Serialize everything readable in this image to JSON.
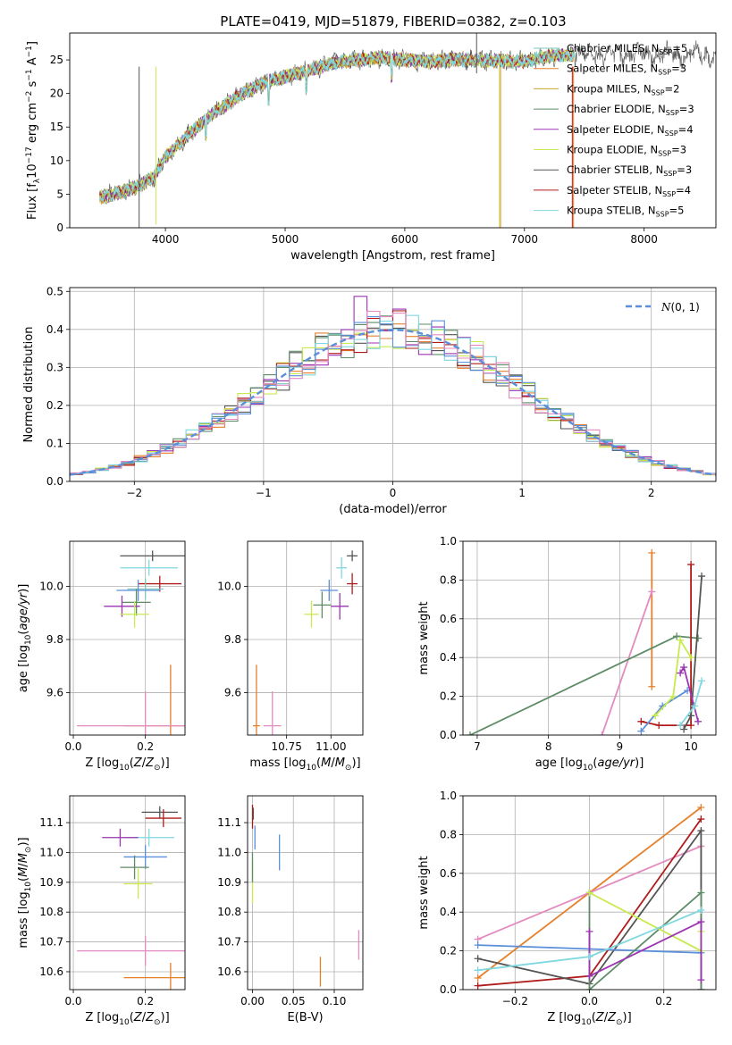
{
  "title": "PLATE=0419, MJD=51879, FIBERID=0382, z=0.103",
  "colors": {
    "chabrier_miles": "#7fc6c0",
    "salpeter_miles": "#e5802c",
    "kroupa_miles": "#c8a632",
    "chabrier_elodie": "#5e8c66",
    "salpeter_elodie": "#9b35b2",
    "kroupa_elodie": "#c8ea4e",
    "chabrier_stelib": "#555555",
    "salpeter_stelib": "#b01c1c",
    "kroupa_stelib": "#7fd8df",
    "blue": "#5b8fd9",
    "pink": "#e38bc0",
    "grid": "#b0b0b0"
  },
  "chart_data": [
    {
      "type": "line",
      "panel": "spectrum",
      "xlabel": "wavelength [Angstrom, rest frame]",
      "ylabel": "Flux [f_λ10^-17 erg cm^-2 s^-1 A^-1]",
      "xlim": [
        3200,
        8600
      ],
      "ylim": [
        0,
        29
      ],
      "xticks": [
        "4000",
        "5000",
        "6000",
        "7000",
        "8000"
      ],
      "yticks": [
        "0",
        "5",
        "10",
        "15",
        "20",
        "25"
      ],
      "grid": false,
      "legend_placement": "top-right",
      "legend": [
        {
          "name": "Chabrier MILES, N",
          "sub": "SSP",
          "post": "=5"
        },
        {
          "name": "Salpeter MILES, N",
          "sub": "SSP",
          "post": "=3"
        },
        {
          "name": "Kroupa MILES, N",
          "sub": "SSP",
          "post": "=2"
        },
        {
          "name": "Chabrier ELODIE, N",
          "sub": "SSP",
          "post": "=3"
        },
        {
          "name": "Salpeter ELODIE, N",
          "sub": "SSP",
          "post": "=4"
        },
        {
          "name": "Kroupa ELODIE, N",
          "sub": "SSP",
          "post": "=3"
        },
        {
          "name": "Chabrier STELIB, N",
          "sub": "SSP",
          "post": "=3"
        },
        {
          "name": "Salpeter STELIB, N",
          "sub": "SSP",
          "post": "=4"
        },
        {
          "name": "Kroupa STELIB, N",
          "sub": "SSP",
          "post": "=5"
        }
      ],
      "continuum": {
        "x": [
          3450,
          3600,
          3750,
          3900,
          4000,
          4200,
          4400,
          4600,
          4800,
          5000,
          5200,
          5400,
          5600,
          5800,
          6000,
          6200,
          6400,
          6600,
          6800,
          7000,
          7200,
          7420
        ],
        "y": [
          4.5,
          5.2,
          6.0,
          7.5,
          10.5,
          14.0,
          17.0,
          19.5,
          21.5,
          22.5,
          23.5,
          24.5,
          25.0,
          25.3,
          25.0,
          24.7,
          25.0,
          25.0,
          24.8,
          24.8,
          25.5,
          25.8
        ]
      },
      "spikes": [
        {
          "x": 3780,
          "y": 0.0,
          "series": "Chabrier STELIB"
        },
        {
          "x": 3920,
          "y": 0.5,
          "series": "Kroupa ELODIE"
        },
        {
          "x": 6600,
          "y": 29.0,
          "series": "Chabrier STELIB"
        },
        {
          "x": 6790,
          "y": 0.0,
          "series": "Kroupa ELODIE"
        },
        {
          "x": 6800,
          "y": 0.0,
          "series": "Salpeter MILES"
        },
        {
          "x": 7400,
          "y": 0.0,
          "series": "Salpeter STELIB"
        },
        {
          "x": 7410,
          "y": 0.0,
          "series": "Salpeter MILES"
        }
      ]
    },
    {
      "type": "bar",
      "panel": "residuals",
      "xlabel": "(data-model)/error",
      "ylabel": "Normed distribution",
      "xlim": [
        -2.5,
        2.5
      ],
      "ylim": [
        0,
        0.51
      ],
      "xticks": [
        "−2",
        "−1",
        "0",
        "1",
        "2"
      ],
      "yticks": [
        "0.0",
        "0.1",
        "0.2",
        "0.3",
        "0.4",
        "0.5"
      ],
      "grid": true,
      "legend_placement": "top-right",
      "legend": [
        {
          "name": "N(0,1)"
        }
      ],
      "bin_width": 0.1,
      "series_count": 9,
      "reference": "standard normal"
    },
    {
      "type": "scatter",
      "panel": "age-vs-Z",
      "xlabel": "Z [log10(Z/Z⊙)]",
      "ylabel": "age  [log10(age/yr)]",
      "xlim": [
        -0.01,
        0.31
      ],
      "ylim": [
        9.44,
        10.17
      ],
      "xticks": [
        "0.0",
        "0.2"
      ],
      "yticks": [
        "9.6",
        "9.8",
        "10.0"
      ],
      "grid": true,
      "points": [
        {
          "series": "Chabrier STELIB",
          "x": 0.22,
          "y": 10.115,
          "xerr": 0.09,
          "yerr": 0.02
        },
        {
          "series": "Kroupa STELIB",
          "x": 0.21,
          "y": 10.07,
          "xerr": 0.08,
          "yerr": 0.03
        },
        {
          "series": "Salpeter STELIB",
          "x": 0.24,
          "y": 10.01,
          "xerr": 0.06,
          "yerr": 0.03
        },
        {
          "series": "Chabrier MILES",
          "x": 0.2,
          "y": 9.99,
          "xerr": 0.05,
          "yerr": 0.04
        },
        {
          "series": "blue",
          "x": 0.18,
          "y": 9.985,
          "xerr": 0.06,
          "yerr": 0.04
        },
        {
          "series": "Chabrier ELODIE",
          "x": 0.175,
          "y": 9.94,
          "xerr": 0.04,
          "yerr": 0.05
        },
        {
          "series": "Salpeter ELODIE",
          "x": 0.135,
          "y": 9.925,
          "xerr": 0.05,
          "yerr": 0.04
        },
        {
          "series": "Kroupa ELODIE",
          "x": 0.17,
          "y": 9.895,
          "xerr": 0.04,
          "yerr": 0.05
        },
        {
          "series": "Salpeter MILES",
          "x": 0.27,
          "y": 9.475,
          "xerr": 0.13,
          "yerr": 0.23
        },
        {
          "series": "pink",
          "x": 0.2,
          "y": 9.475,
          "xerr": 0.19,
          "yerr": 0.13
        }
      ]
    },
    {
      "type": "scatter",
      "panel": "age-vs-mass",
      "xlabel": "mass [log10(M/M⊙)]",
      "ylabel": "",
      "xlim": [
        10.53,
        11.18
      ],
      "ylim": [
        9.44,
        10.17
      ],
      "xticks": [
        "10.75",
        "11.00"
      ],
      "yticks": [
        "9.6",
        "9.8",
        "10.0"
      ],
      "grid": true,
      "points": [
        {
          "series": "Chabrier STELIB",
          "x": 11.12,
          "y": 10.115,
          "xerr": 0.03,
          "yerr": 0.02
        },
        {
          "series": "Kroupa STELIB",
          "x": 11.06,
          "y": 10.07,
          "xerr": 0.03,
          "yerr": 0.04
        },
        {
          "series": "Salpeter STELIB",
          "x": 11.12,
          "y": 10.01,
          "xerr": 0.03,
          "yerr": 0.04
        },
        {
          "series": "blue",
          "x": 10.99,
          "y": 9.985,
          "xerr": 0.05,
          "yerr": 0.04
        },
        {
          "series": "Chabrier ELODIE",
          "x": 10.95,
          "y": 9.93,
          "xerr": 0.05,
          "yerr": 0.05
        },
        {
          "series": "Salpeter ELODIE",
          "x": 11.05,
          "y": 9.925,
          "xerr": 0.05,
          "yerr": 0.05
        },
        {
          "series": "Kroupa ELODIE",
          "x": 10.89,
          "y": 9.895,
          "xerr": 0.04,
          "yerr": 0.05
        },
        {
          "series": "pink",
          "x": 10.67,
          "y": 9.475,
          "xerr": 0.05,
          "yerr": 0.13
        },
        {
          "series": "Salpeter MILES",
          "x": 10.58,
          "y": 9.475,
          "xerr": 0.02,
          "yerr": 0.23
        }
      ]
    },
    {
      "type": "line",
      "panel": "mass-weight-vs-age",
      "xlabel": "age  [log10(age/yr)]",
      "ylabel": "mass weight",
      "xlim": [
        6.8,
        10.35
      ],
      "ylim": [
        0,
        1
      ],
      "xticks": [
        "7",
        "8",
        "9",
        "10"
      ],
      "yticks": [
        "0.0",
        "0.2",
        "0.4",
        "0.6",
        "0.8",
        "1.0"
      ],
      "grid": true,
      "series": [
        {
          "name": "Salpeter MILES",
          "x": [
            9.45,
            9.45
          ],
          "y": [
            0.25,
            0.94
          ]
        },
        {
          "name": "pink",
          "x": [
            8.75,
            9.45
          ],
          "y": [
            0.0,
            0.74
          ]
        },
        {
          "name": "Chabrier ELODIE",
          "x": [
            6.9,
            9.8,
            10.1
          ],
          "y": [
            0.0,
            0.51,
            0.5
          ]
        },
        {
          "name": "Salpeter STELIB",
          "x": [
            9.3,
            9.55,
            10.0,
            10.0
          ],
          "y": [
            0.07,
            0.05,
            0.05,
            0.88
          ]
        },
        {
          "name": "Chabrier STELIB",
          "x": [
            9.9,
            10.0,
            10.15
          ],
          "y": [
            0.03,
            0.1,
            0.82
          ]
        },
        {
          "name": "blue",
          "x": [
            9.3,
            9.6,
            9.95
          ],
          "y": [
            0.02,
            0.15,
            0.23
          ]
        },
        {
          "name": "Kroupa ELODIE",
          "x": [
            9.5,
            9.75,
            9.85,
            10.0
          ],
          "y": [
            0.1,
            0.2,
            0.49,
            0.4
          ]
        },
        {
          "name": "Salpeter ELODIE",
          "x": [
            9.85,
            9.9,
            10.1
          ],
          "y": [
            0.32,
            0.35,
            0.07
          ]
        },
        {
          "name": "Kroupa STELIB",
          "x": [
            9.85,
            10.05,
            10.15
          ],
          "y": [
            0.05,
            0.15,
            0.28
          ]
        }
      ]
    },
    {
      "type": "scatter",
      "panel": "mass-vs-Z",
      "xlabel": "Z [log10(Z/Z⊙)]",
      "ylabel": "mass [log10(M/M⊙)]",
      "xlim": [
        -0.01,
        0.31
      ],
      "ylim": [
        10.54,
        11.19
      ],
      "xticks": [
        "0.0",
        "0.2"
      ],
      "yticks": [
        "10.6",
        "10.7",
        "10.8",
        "10.9",
        "11.0",
        "11.1"
      ],
      "grid": true,
      "points": [
        {
          "series": "Chabrier STELIB",
          "x": 0.24,
          "y": 11.135,
          "xerr": 0.05,
          "yerr": 0.02
        },
        {
          "series": "Salpeter STELIB",
          "x": 0.25,
          "y": 11.115,
          "xerr": 0.05,
          "yerr": 0.03
        },
        {
          "series": "Kroupa STELIB",
          "x": 0.21,
          "y": 11.05,
          "xerr": 0.07,
          "yerr": 0.03
        },
        {
          "series": "Salpeter ELODIE",
          "x": 0.13,
          "y": 11.05,
          "xerr": 0.05,
          "yerr": 0.03
        },
        {
          "series": "blue",
          "x": 0.2,
          "y": 10.985,
          "xerr": 0.06,
          "yerr": 0.04
        },
        {
          "series": "Chabrier ELODIE",
          "x": 0.17,
          "y": 10.95,
          "xerr": 0.04,
          "yerr": 0.04
        },
        {
          "series": "Kroupa ELODIE",
          "x": 0.18,
          "y": 10.895,
          "xerr": 0.04,
          "yerr": 0.05
        },
        {
          "series": "pink",
          "x": 0.2,
          "y": 10.67,
          "xerr": 0.19,
          "yerr": 0.05
        },
        {
          "series": "Salpeter MILES",
          "x": 0.27,
          "y": 10.58,
          "xerr": 0.13,
          "yerr": 0.05
        }
      ]
    },
    {
      "type": "scatter",
      "panel": "mass-vs-EBV",
      "xlabel": "E(B-V)",
      "ylabel": "",
      "xlim": [
        -0.006,
        0.135
      ],
      "ylim": [
        10.54,
        11.19
      ],
      "xticks": [
        "0.00",
        "0.05",
        "0.10"
      ],
      "yticks": [
        "10.6",
        "10.7",
        "10.8",
        "10.9",
        "11.0",
        "11.1"
      ],
      "grid": true,
      "points": [
        {
          "series": "Salpeter STELIB",
          "x": 0.0,
          "y": 11.12,
          "yerr": 0.04
        },
        {
          "series": "Chabrier STELIB",
          "x": 0.001,
          "y": 11.13,
          "yerr": 0.02
        },
        {
          "series": "blue",
          "x": 0.003,
          "y": 11.05,
          "yerr": 0.04
        },
        {
          "series": "Kroupa ELODIE",
          "x": 0.0,
          "y": 10.9,
          "yerr": 0.07
        },
        {
          "series": "Chabrier ELODIE",
          "x": 0.0,
          "y": 10.95,
          "yerr": 0.05
        },
        {
          "series": "blue",
          "x": 0.033,
          "y": 11.0,
          "yerr": 0.06
        },
        {
          "series": "Salpeter MILES",
          "x": 0.083,
          "y": 10.6,
          "yerr": 0.05
        },
        {
          "series": "pink",
          "x": 0.13,
          "y": 10.69,
          "yerr": 0.05
        }
      ]
    },
    {
      "type": "line",
      "panel": "mass-weight-vs-Z",
      "xlabel": "Z [log10(Z/Z⊙)]",
      "ylabel": "mass weight",
      "xlim": [
        -0.34,
        0.34
      ],
      "ylim": [
        0,
        1
      ],
      "xticks": [
        "−0.2",
        "0.0",
        "0.2"
      ],
      "yticks": [
        "0.0",
        "0.2",
        "0.4",
        "0.6",
        "0.8",
        "1.0"
      ],
      "grid": true,
      "series": [
        {
          "name": "Salpeter MILES",
          "x": [
            -0.3,
            0.0,
            0.3
          ],
          "y": [
            0.06,
            0.5,
            0.94
          ]
        },
        {
          "name": "pink",
          "x": [
            -0.3,
            0.0,
            0.3,
            0.3
          ],
          "y": [
            0.26,
            0.5,
            0.74,
            0.0
          ]
        },
        {
          "name": "Salpeter STELIB",
          "x": [
            -0.3,
            0.0,
            0.3
          ],
          "y": [
            0.02,
            0.07,
            0.88
          ]
        },
        {
          "name": "Chabrier STELIB",
          "x": [
            -0.3,
            0.0,
            0.3,
            0.3
          ],
          "y": [
            0.16,
            0.03,
            0.82,
            0.0
          ]
        },
        {
          "name": "blue",
          "x": [
            -0.3,
            0.3
          ],
          "y": [
            0.23,
            0.19
          ]
        },
        {
          "name": "Chabrier ELODIE",
          "x": [
            0.0,
            0.0,
            0.3,
            0.3
          ],
          "y": [
            0.5,
            0.0,
            0.5,
            0.0
          ]
        },
        {
          "name": "Kroupa ELODIE",
          "x": [
            0.0,
            0.3,
            0.3
          ],
          "y": [
            0.5,
            0.2,
            0.3
          ]
        },
        {
          "name": "Salpeter ELODIE",
          "x": [
            0.0,
            0.0,
            0.3,
            0.3
          ],
          "y": [
            0.3,
            0.07,
            0.35,
            0.05
          ]
        },
        {
          "name": "Kroupa STELIB",
          "x": [
            -0.3,
            0.0,
            0.3
          ],
          "y": [
            0.1,
            0.17,
            0.41
          ]
        }
      ]
    }
  ]
}
